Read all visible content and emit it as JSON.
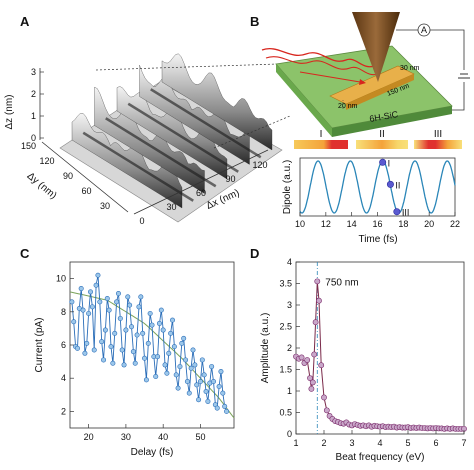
{
  "panels": {
    "a": {
      "letter": "A",
      "z_label": "Δz (nm)",
      "y_label": "Δy (nm)",
      "x_label": "Δx (nm)",
      "z_ticks": [
        "0",
        "1",
        "2",
        "3"
      ],
      "y_ticks": [
        "150",
        "120",
        "90",
        "60",
        "30"
      ],
      "x_ticks": [
        "0",
        "30",
        "60",
        "90",
        "120"
      ]
    },
    "b": {
      "letter": "B",
      "substrate_label": "6H-SiC",
      "ammeter_label": "A",
      "dim_30": "30 nm",
      "dim_150": "150 nm",
      "dim_20": "20 nm",
      "roman": [
        "I",
        "II",
        "III"
      ],
      "y_label": "Dipole (a.u.)",
      "x_label": "Time (fs)",
      "x_ticks": [
        "10",
        "12",
        "14",
        "16",
        "18",
        "20",
        "22"
      ]
    },
    "c": {
      "letter": "C",
      "y_label": "Current (pA)",
      "x_label": "Delay (fs)",
      "x_ticks": [
        "20",
        "30",
        "40",
        "50"
      ],
      "y_ticks": [
        "2",
        "4",
        "6",
        "8",
        "10"
      ]
    },
    "d": {
      "letter": "D",
      "y_label": "Amplitude (a.u.)",
      "x_label": "Beat frequency (eV)",
      "annotation": "750 nm",
      "x_ticks": [
        "1",
        "2",
        "3",
        "4",
        "5",
        "6",
        "7"
      ],
      "y_ticks": [
        "0",
        "0.5",
        "1",
        "1.5",
        "2",
        "2.5",
        "3",
        "3.5",
        "4"
      ]
    }
  },
  "chart_data": [
    {
      "type": "line",
      "panel": "B",
      "xlabel": "Time (fs)",
      "ylabel": "Dipole (a.u.)",
      "xlim": [
        10,
        22
      ],
      "period_fs": 2.5,
      "markers": [
        {
          "label": "I",
          "x": 16.4,
          "y": 0.95
        },
        {
          "label": "II",
          "x": 17.0,
          "y": 0.1
        },
        {
          "label": "III",
          "x": 17.5,
          "y": -0.95
        }
      ]
    },
    {
      "type": "scatter",
      "panel": "C",
      "xlabel": "Delay (fs)",
      "ylabel": "Current (pA)",
      "xlim": [
        15,
        59
      ],
      "ylim": [
        1,
        11
      ],
      "x": [
        15.5,
        16,
        16.5,
        17,
        17.5,
        18,
        18.5,
        19,
        19.5,
        20,
        20.5,
        21,
        21.5,
        22,
        22.5,
        23,
        23.5,
        24,
        24.5,
        25,
        25.5,
        26,
        26.5,
        27,
        27.5,
        28,
        28.5,
        29,
        29.5,
        30,
        30.5,
        31,
        31.5,
        32,
        32.5,
        33,
        33.5,
        34,
        34.5,
        35,
        35.5,
        36,
        36.5,
        37,
        37.5,
        38,
        38.5,
        39,
        39.5,
        40,
        40.5,
        41,
        41.5,
        42,
        42.5,
        43,
        43.5,
        44,
        44.5,
        45,
        45.5,
        46,
        46.5,
        47,
        47.5,
        48,
        48.5,
        49,
        49.5,
        50,
        50.5,
        51,
        51.5,
        52,
        52.5,
        53,
        53.5,
        54,
        54.5,
        55,
        55.5,
        56,
        56.5,
        57
      ],
      "y": [
        8.6,
        7.4,
        5.9,
        5.8,
        8.2,
        9.4,
        8.1,
        5.5,
        6.1,
        7.9,
        9.2,
        8.3,
        5.7,
        9.6,
        10.2,
        8.6,
        6.2,
        5.1,
        6.9,
        8.8,
        8.1,
        5.9,
        4.9,
        6.7,
        8.6,
        9.1,
        7.6,
        5.7,
        4.8,
        6.9,
        8.9,
        8.4,
        7.1,
        5.6,
        4.9,
        6.6,
        8.3,
        8.9,
        6.7,
        5.2,
        3.9,
        6.1,
        7.9,
        7.2,
        5.3,
        4.1,
        5.3,
        7.3,
        8.1,
        6.9,
        4.8,
        4.3,
        5.5,
        6.7,
        7.5,
        5.9,
        4.2,
        3.4,
        4.7,
        6.1,
        6.4,
        5.1,
        3.8,
        3.1,
        4.6,
        5.7,
        4.8,
        3.6,
        2.7,
        3.8,
        5.1,
        4.2,
        3.2,
        2.6,
        3.7,
        4.7,
        3.8,
        2.4,
        2.2,
        3.5,
        4.4,
        3.1,
        2.3,
        2.0
      ],
      "fit": {
        "label": "smooth envelope",
        "x": [
          15,
          25,
          35,
          45,
          55,
          59
        ],
        "y": [
          9.2,
          8.7,
          7.3,
          5.2,
          2.8,
          1.6
        ]
      }
    },
    {
      "type": "scatter",
      "panel": "D",
      "xlabel": "Beat frequency (eV)",
      "ylabel": "Amplitude (a.u.)",
      "xlim": [
        1,
        7
      ],
      "ylim": [
        0,
        4
      ],
      "peak": {
        "x": 1.76,
        "y": 3.55,
        "label": "750 nm"
      },
      "x": [
        1.0,
        1.1,
        1.2,
        1.3,
        1.4,
        1.5,
        1.55,
        1.6,
        1.65,
        1.7,
        1.76,
        1.82,
        1.9,
        2.0,
        2.1,
        2.2,
        2.3,
        2.4,
        2.5,
        2.6,
        2.7,
        2.8,
        2.9,
        3.0,
        3.1,
        3.2,
        3.3,
        3.4,
        3.5,
        3.6,
        3.7,
        3.8,
        3.9,
        4.0,
        4.1,
        4.2,
        4.3,
        4.4,
        4.5,
        4.6,
        4.7,
        4.8,
        4.9,
        5.0,
        5.1,
        5.2,
        5.3,
        5.4,
        5.5,
        5.6,
        5.7,
        5.8,
        5.9,
        6.0,
        6.1,
        6.2,
        6.3,
        6.4,
        6.5,
        6.6,
        6.7,
        6.8,
        6.9,
        7.0
      ],
      "y": [
        1.8,
        1.75,
        1.78,
        1.65,
        1.72,
        1.3,
        1.05,
        1.2,
        1.85,
        2.6,
        3.55,
        3.1,
        1.6,
        0.85,
        0.55,
        0.42,
        0.35,
        0.3,
        0.28,
        0.25,
        0.24,
        0.27,
        0.22,
        0.2,
        0.23,
        0.21,
        0.19,
        0.2,
        0.18,
        0.2,
        0.17,
        0.19,
        0.18,
        0.17,
        0.18,
        0.16,
        0.17,
        0.16,
        0.17,
        0.15,
        0.16,
        0.15,
        0.15,
        0.16,
        0.14,
        0.15,
        0.14,
        0.15,
        0.14,
        0.14,
        0.13,
        0.14,
        0.13,
        0.14,
        0.13,
        0.13,
        0.12,
        0.13,
        0.12,
        0.13,
        0.12,
        0.12,
        0.12,
        0.12
      ]
    }
  ]
}
